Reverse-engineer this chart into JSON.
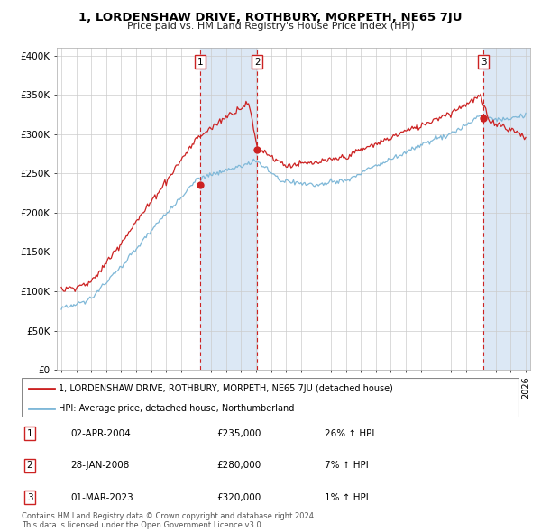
{
  "title": "1, LORDENSHAW DRIVE, ROTHBURY, MORPETH, NE65 7JU",
  "subtitle": "Price paid vs. HM Land Registry's House Price Index (HPI)",
  "ylabel_ticks": [
    "£0",
    "£50K",
    "£100K",
    "£150K",
    "£200K",
    "£250K",
    "£300K",
    "£350K",
    "£400K"
  ],
  "ytick_values": [
    0,
    50000,
    100000,
    150000,
    200000,
    250000,
    300000,
    350000,
    400000
  ],
  "ylim": [
    0,
    410000
  ],
  "xlim_start": 1994.7,
  "xlim_end": 2026.3,
  "sale_dates": [
    2004.25,
    2008.08,
    2023.17
  ],
  "sale_prices": [
    235000,
    280000,
    320000
  ],
  "sale_labels": [
    "1",
    "2",
    "3"
  ],
  "hpi_color": "#7fb8d8",
  "price_color": "#cc2222",
  "background_color": "#ffffff",
  "shaded_region_color": "#dce8f5",
  "grid_color": "#cccccc",
  "legend_label_price": "1, LORDENSHAW DRIVE, ROTHBURY, MORPETH, NE65 7JU (detached house)",
  "legend_label_hpi": "HPI: Average price, detached house, Northumberland",
  "table_rows": [
    {
      "num": "1",
      "date": "02-APR-2004",
      "price": "£235,000",
      "pct": "26% ↑ HPI"
    },
    {
      "num": "2",
      "date": "28-JAN-2008",
      "price": "£280,000",
      "pct": "7% ↑ HPI"
    },
    {
      "num": "3",
      "date": "01-MAR-2023",
      "price": "£320,000",
      "pct": "1% ↑ HPI"
    }
  ],
  "footer": "Contains HM Land Registry data © Crown copyright and database right 2024.\nThis data is licensed under the Open Government Licence v3.0."
}
